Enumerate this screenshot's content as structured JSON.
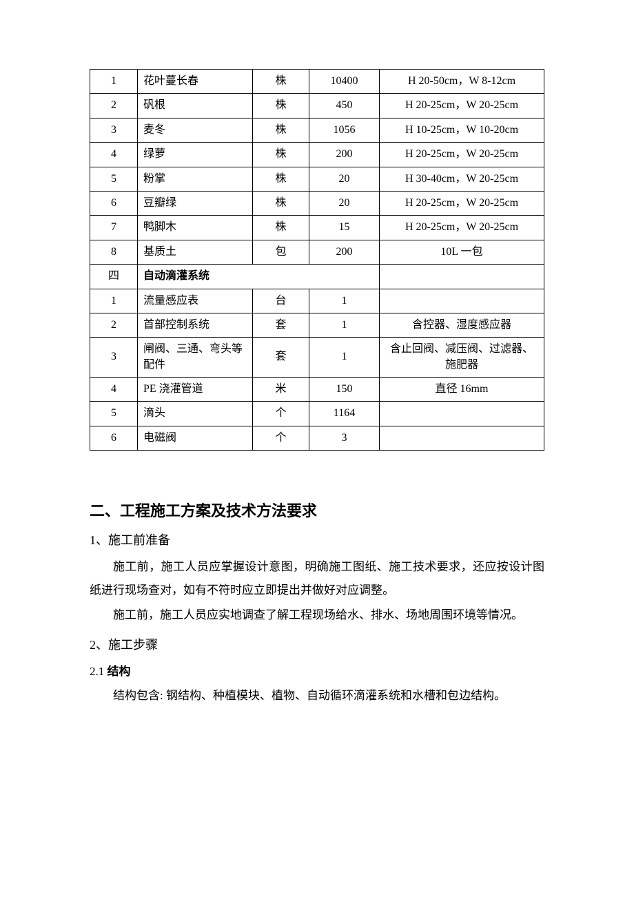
{
  "table": {
    "rows": [
      {
        "id": "1",
        "name": "花叶蔓长春",
        "unit": "株",
        "qty": "10400",
        "spec": "H 20-50cm，W 8-12cm",
        "type": "data"
      },
      {
        "id": "2",
        "name": "矾根",
        "unit": "株",
        "qty": "450",
        "spec": "H 20-25cm，W 20-25cm",
        "type": "data"
      },
      {
        "id": "3",
        "name": "麦冬",
        "unit": "株",
        "qty": "1056",
        "spec": "H 10-25cm，W 10-20cm",
        "type": "data"
      },
      {
        "id": "4",
        "name": "绿萝",
        "unit": "株",
        "qty": "200",
        "spec": "H 20-25cm，W 20-25cm",
        "type": "data"
      },
      {
        "id": "5",
        "name": "粉掌",
        "unit": "株",
        "qty": "20",
        "spec": "H 30-40cm，W 20-25cm",
        "type": "data"
      },
      {
        "id": "6",
        "name": "豆瓣绿",
        "unit": "株",
        "qty": "20",
        "spec": "H 20-25cm，W 20-25cm",
        "type": "data"
      },
      {
        "id": "7",
        "name": "鸭脚木",
        "unit": "株",
        "qty": "15",
        "spec": "H 20-25cm，W 20-25cm",
        "type": "data"
      },
      {
        "id": "8",
        "name": "基质土",
        "unit": "包",
        "qty": "200",
        "spec": "10L 一包",
        "type": "data"
      },
      {
        "id": "四",
        "name": "自动滴灌系统",
        "unit": "",
        "qty": "",
        "spec": "",
        "type": "section"
      },
      {
        "id": "1",
        "name": "流量感应表",
        "unit": "台",
        "qty": "1",
        "spec": "",
        "type": "data"
      },
      {
        "id": "2",
        "name": "首部控制系统",
        "unit": "套",
        "qty": "1",
        "spec": "含控器、湿度感应器",
        "type": "data"
      },
      {
        "id": "3",
        "name": "闸阀、三通、弯头等配件",
        "unit": "套",
        "qty": "1",
        "spec": "含止回阀、减压阀、过滤器、施肥器",
        "type": "data"
      },
      {
        "id": "4",
        "name": "PE 浇灌管道",
        "unit": "米",
        "qty": "150",
        "spec": "直径 16mm",
        "type": "data"
      },
      {
        "id": "5",
        "name": "滴头",
        "unit": "个",
        "qty": "1164",
        "spec": "",
        "type": "data"
      },
      {
        "id": "6",
        "name": "电磁阀",
        "unit": "个",
        "qty": "3",
        "spec": "",
        "type": "data"
      }
    ]
  },
  "headings": {
    "h2": "二、工程施工方案及技术方法要求",
    "h3_1": "1、施工前准备",
    "h3_2": "2、施工步骤",
    "h4_21_prefix": "2.1 ",
    "h4_21_bold": "结构"
  },
  "paragraphs": {
    "p1": "施工前，施工人员应掌握设计意图，明确施工图纸、施工技术要求，还应按设计图纸进行现场查对，如有不符时应立即提出并做好对应调整。",
    "p2": "施工前，施工人员应实地调查了解工程现场给水、排水、场地周围环境等情况。",
    "p3": "结构包含: 钢结构、种植模块、植物、自动循环滴灌系统和水槽和包边结构。"
  }
}
